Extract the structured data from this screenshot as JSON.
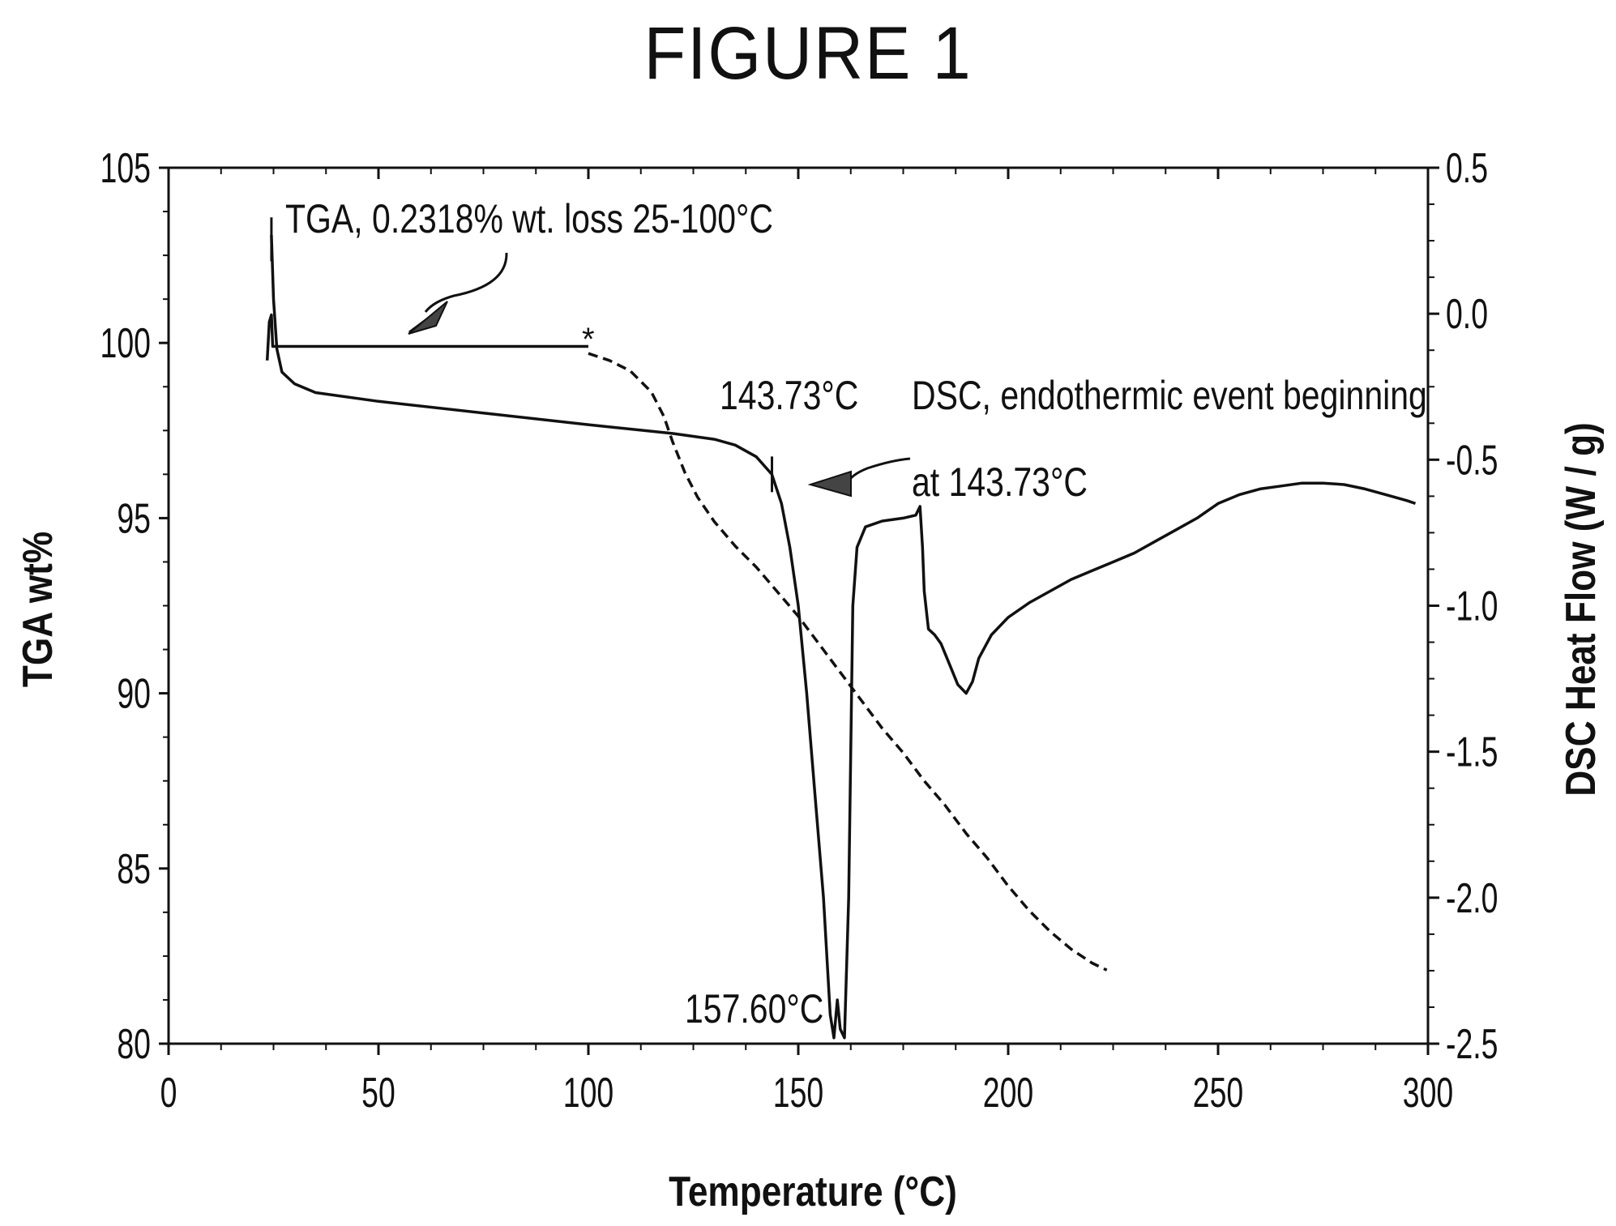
{
  "figure_label": "FIGURE 1",
  "chart_data": {
    "type": "line",
    "xlabel": "Temperature (°C)",
    "ylabel_left": "TGA wt%",
    "ylabel_right": "DSC Heat Flow (W / g)",
    "xlim": [
      0,
      300
    ],
    "ylim_left": [
      80,
      105
    ],
    "ylim_right": [
      -2.5,
      0.5
    ],
    "x_ticks": [
      "0",
      "50",
      "100",
      "150",
      "200",
      "250",
      "300"
    ],
    "y_left_ticks": [
      "80",
      "85",
      "90",
      "95",
      "100",
      "105"
    ],
    "y_right_ticks": [
      "-2.5",
      "-2.0",
      "-1.5",
      "-1.0",
      "-0.5",
      "0.0",
      "0.5"
    ],
    "grid": false,
    "legend": "none",
    "series": [
      {
        "axis": "left",
        "style": "solid",
        "points": [
          [
            23.5,
            99.5
          ],
          [
            24,
            100.6
          ],
          [
            24.5,
            100.8
          ],
          [
            24.8,
            99.9
          ],
          [
            100,
            99.9
          ]
        ]
      },
      {
        "axis": "left",
        "style": "dashed",
        "points": [
          [
            100,
            99.7
          ],
          [
            105,
            99.5
          ],
          [
            110,
            99.2
          ],
          [
            115,
            98.6
          ],
          [
            118,
            97.9
          ],
          [
            120,
            97.2
          ],
          [
            123,
            96.3
          ],
          [
            126,
            95.6
          ],
          [
            130,
            94.9
          ],
          [
            135,
            94.2
          ],
          [
            140,
            93.6
          ],
          [
            145,
            92.9
          ],
          [
            150,
            92.2
          ],
          [
            155,
            91.4
          ],
          [
            160,
            90.6
          ],
          [
            165,
            89.8
          ],
          [
            170,
            89.0
          ],
          [
            175,
            88.3
          ],
          [
            180,
            87.5
          ],
          [
            185,
            86.8
          ],
          [
            190,
            86.0
          ],
          [
            195,
            85.3
          ],
          [
            200,
            84.5
          ],
          [
            205,
            83.8
          ],
          [
            210,
            83.2
          ],
          [
            215,
            82.7
          ],
          [
            220,
            82.3
          ],
          [
            223.5,
            82.1
          ]
        ]
      },
      {
        "axis": "right",
        "style": "solid",
        "points": [
          [
            24.5,
            0.27
          ],
          [
            25,
            0.05
          ],
          [
            25.8,
            -0.12
          ],
          [
            27,
            -0.2
          ],
          [
            30,
            -0.24
          ],
          [
            35,
            -0.27
          ],
          [
            50,
            -0.3
          ],
          [
            75,
            -0.34
          ],
          [
            100,
            -0.38
          ],
          [
            120,
            -0.41
          ],
          [
            130,
            -0.43
          ],
          [
            135,
            -0.45
          ],
          [
            140,
            -0.49
          ],
          [
            143.7,
            -0.55
          ],
          [
            146,
            -0.65
          ],
          [
            148,
            -0.8
          ],
          [
            150,
            -1.0
          ],
          [
            152,
            -1.3
          ],
          [
            154,
            -1.65
          ],
          [
            156,
            -2.0
          ],
          [
            157.6,
            -2.4
          ],
          [
            158.5,
            -2.48
          ],
          [
            159.3,
            -2.35
          ],
          [
            160,
            -2.45
          ],
          [
            161,
            -2.48
          ],
          [
            162,
            -2.0
          ],
          [
            163,
            -1.0
          ],
          [
            164,
            -0.8
          ],
          [
            166,
            -0.73
          ],
          [
            170,
            -0.71
          ],
          [
            175,
            -0.7
          ],
          [
            178,
            -0.69
          ],
          [
            179,
            -0.66
          ],
          [
            179.6,
            -0.8
          ],
          [
            180,
            -0.95
          ],
          [
            181,
            -1.08
          ],
          [
            182.5,
            -1.1
          ],
          [
            184,
            -1.13
          ],
          [
            186,
            -1.2
          ],
          [
            188,
            -1.27
          ],
          [
            190,
            -1.3
          ],
          [
            191.5,
            -1.26
          ],
          [
            193,
            -1.18
          ],
          [
            196,
            -1.1
          ],
          [
            200,
            -1.04
          ],
          [
            205,
            -0.99
          ],
          [
            210,
            -0.95
          ],
          [
            215,
            -0.91
          ],
          [
            220,
            -0.88
          ],
          [
            225,
            -0.85
          ],
          [
            230,
            -0.82
          ],
          [
            235,
            -0.78
          ],
          [
            240,
            -0.74
          ],
          [
            245,
            -0.7
          ],
          [
            250,
            -0.65
          ],
          [
            255,
            -0.62
          ],
          [
            260,
            -0.6
          ],
          [
            265,
            -0.59
          ],
          [
            270,
            -0.58
          ],
          [
            275,
            -0.58
          ],
          [
            280,
            -0.585
          ],
          [
            285,
            -0.6
          ],
          [
            290,
            -0.62
          ],
          [
            295,
            -0.64
          ],
          [
            297,
            -0.65
          ]
        ]
      }
    ],
    "annotations": [
      {
        "text": "TGA, 0.2318% wt. loss 25-100°C"
      },
      {
        "text": "*"
      },
      {
        "text": "143.73°C"
      },
      {
        "text": "DSC, endothermic event beginning"
      },
      {
        "text": "at 143.73°C"
      },
      {
        "text": "157.60°C"
      }
    ]
  }
}
